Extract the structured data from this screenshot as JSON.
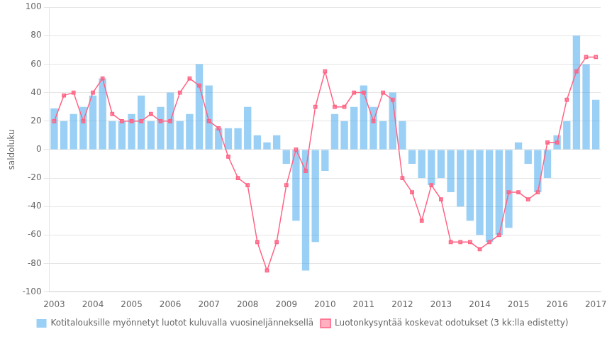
{
  "chart_data": {
    "type": "bar",
    "categories": [
      "2003",
      null,
      null,
      null,
      "2004",
      null,
      null,
      null,
      "2005",
      null,
      null,
      null,
      "2006",
      null,
      null,
      null,
      "2007",
      null,
      null,
      null,
      "2008",
      null,
      null,
      null,
      "2009",
      null,
      null,
      null,
      "2010",
      null,
      null,
      null,
      "2011",
      null,
      null,
      null,
      "2012",
      null,
      null,
      null,
      "2013",
      null,
      null,
      null,
      "2014",
      null,
      null,
      null,
      "2015",
      null,
      null,
      null,
      "2016",
      null,
      null,
      null,
      "2017"
    ],
    "series": [
      {
        "name": "Kotitalouksille myönnetyt luotot kuluvalla vuosineljänneksellä",
        "type": "bar",
        "values": [
          29,
          20,
          25,
          30,
          38,
          50,
          20,
          20,
          25,
          38,
          20,
          30,
          40,
          20,
          25,
          60,
          45,
          15,
          15,
          15,
          30,
          10,
          5,
          10,
          -10,
          -50,
          -85,
          -65,
          -15,
          25,
          20,
          30,
          45,
          30,
          20,
          40,
          20,
          -10,
          -20,
          -25,
          -20,
          -30,
          -40,
          -50,
          -60,
          -65,
          -60,
          -55,
          5,
          -10,
          -30,
          -20,
          10,
          20,
          80,
          60,
          35
        ]
      },
      {
        "name": "Luotonkysyntää koskevat odotukset (3 kk:lla edistetty)",
        "type": "line",
        "marker": "square",
        "values": [
          20,
          38,
          40,
          20,
          40,
          50,
          25,
          20,
          20,
          20,
          25,
          20,
          20,
          40,
          50,
          45,
          20,
          15,
          -5,
          -20,
          -25,
          -65,
          -85,
          -65,
          -25,
          0,
          -15,
          30,
          55,
          30,
          30,
          40,
          40,
          20,
          40,
          35,
          -20,
          -30,
          -50,
          -25,
          -35,
          -65,
          -65,
          -65,
          -70,
          -65,
          -60,
          -30,
          -30,
          -35,
          -30,
          5,
          5,
          35,
          55,
          65,
          65
        ]
      }
    ],
    "ylabel": "saldoluku",
    "ylim": [
      -100,
      100
    ],
    "yticks": [
      -100,
      -80,
      -60,
      -40,
      -20,
      0,
      20,
      40,
      60,
      80,
      100
    ],
    "grid": true,
    "legend": "bottom"
  }
}
